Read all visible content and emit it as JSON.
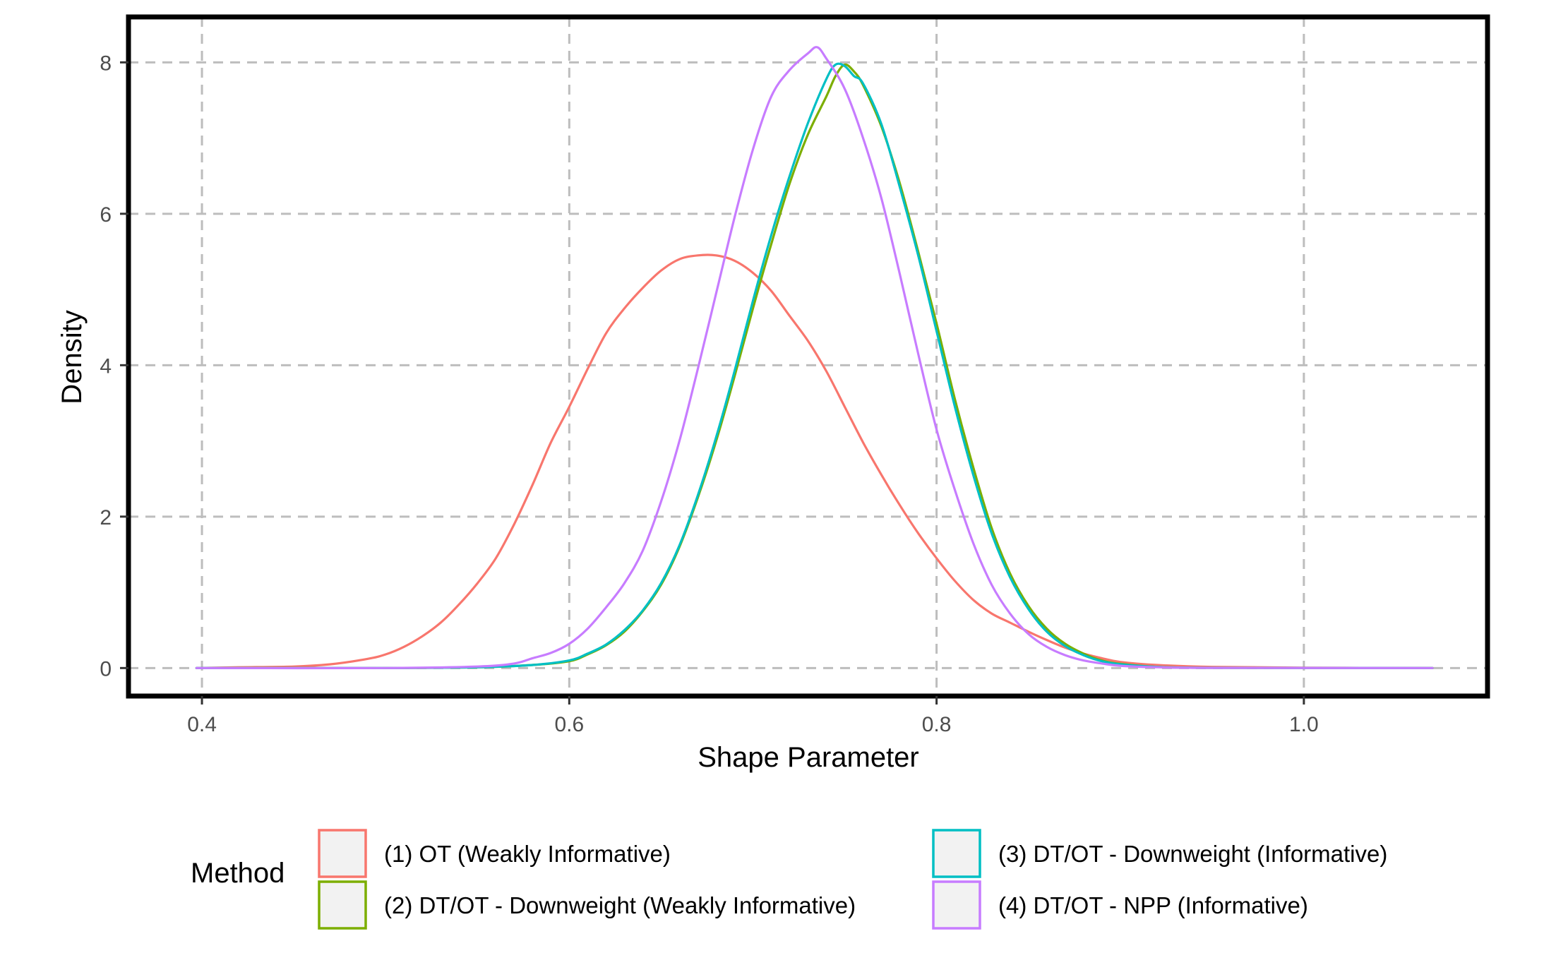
{
  "chart_data": {
    "type": "line",
    "title": "",
    "xlabel": "Shape Parameter",
    "ylabel": "Density",
    "xlim": [
      0.36,
      1.1
    ],
    "ylim": [
      -0.37,
      8.6
    ],
    "x_ticks": [
      0.4,
      0.6,
      0.8,
      1.0
    ],
    "x_tick_labels": [
      "0.4",
      "0.6",
      "0.8",
      "1.0"
    ],
    "y_ticks": [
      0,
      2,
      4,
      6,
      8
    ],
    "y_tick_labels": [
      "0",
      "2",
      "4",
      "6",
      "8"
    ],
    "grid": true,
    "legend": {
      "title": "Method",
      "position": "bottom"
    },
    "series": [
      {
        "name": "(1) OT (Weakly Informative)",
        "color": "#F8766D",
        "points": [
          [
            0.397,
            0
          ],
          [
            0.42,
            0.01
          ],
          [
            0.45,
            0.02
          ],
          [
            0.47,
            0.05
          ],
          [
            0.49,
            0.12
          ],
          [
            0.5,
            0.18
          ],
          [
            0.51,
            0.28
          ],
          [
            0.52,
            0.42
          ],
          [
            0.53,
            0.6
          ],
          [
            0.54,
            0.84
          ],
          [
            0.55,
            1.12
          ],
          [
            0.56,
            1.45
          ],
          [
            0.57,
            1.9
          ],
          [
            0.58,
            2.42
          ],
          [
            0.59,
            2.98
          ],
          [
            0.6,
            3.45
          ],
          [
            0.61,
            3.95
          ],
          [
            0.62,
            4.42
          ],
          [
            0.63,
            4.75
          ],
          [
            0.64,
            5.02
          ],
          [
            0.65,
            5.25
          ],
          [
            0.66,
            5.4
          ],
          [
            0.67,
            5.45
          ],
          [
            0.68,
            5.45
          ],
          [
            0.69,
            5.38
          ],
          [
            0.7,
            5.22
          ],
          [
            0.71,
            4.98
          ],
          [
            0.72,
            4.65
          ],
          [
            0.73,
            4.32
          ],
          [
            0.74,
            3.92
          ],
          [
            0.75,
            3.45
          ],
          [
            0.76,
            2.98
          ],
          [
            0.77,
            2.55
          ],
          [
            0.78,
            2.15
          ],
          [
            0.79,
            1.78
          ],
          [
            0.8,
            1.45
          ],
          [
            0.81,
            1.15
          ],
          [
            0.82,
            0.9
          ],
          [
            0.83,
            0.72
          ],
          [
            0.84,
            0.6
          ],
          [
            0.85,
            0.48
          ],
          [
            0.86,
            0.37
          ],
          [
            0.87,
            0.27
          ],
          [
            0.88,
            0.19
          ],
          [
            0.89,
            0.13
          ],
          [
            0.9,
            0.08
          ],
          [
            0.92,
            0.04
          ],
          [
            0.95,
            0.015
          ],
          [
            1.0,
            0.005
          ],
          [
            1.07,
            0
          ]
        ]
      },
      {
        "name": "(2) DT/OT - Downweight (Weakly Informative)",
        "color": "#7CAE00",
        "points": [
          [
            0.397,
            0
          ],
          [
            0.5,
            0
          ],
          [
            0.55,
            0.01
          ],
          [
            0.58,
            0.04
          ],
          [
            0.6,
            0.09
          ],
          [
            0.61,
            0.18
          ],
          [
            0.62,
            0.3
          ],
          [
            0.63,
            0.48
          ],
          [
            0.64,
            0.75
          ],
          [
            0.65,
            1.1
          ],
          [
            0.66,
            1.6
          ],
          [
            0.67,
            2.25
          ],
          [
            0.68,
            3.0
          ],
          [
            0.69,
            3.85
          ],
          [
            0.7,
            4.75
          ],
          [
            0.71,
            5.6
          ],
          [
            0.72,
            6.4
          ],
          [
            0.73,
            7.05
          ],
          [
            0.74,
            7.55
          ],
          [
            0.745,
            7.82
          ],
          [
            0.75,
            7.97
          ],
          [
            0.755,
            7.88
          ],
          [
            0.76,
            7.7
          ],
          [
            0.77,
            7.15
          ],
          [
            0.78,
            6.4
          ],
          [
            0.79,
            5.5
          ],
          [
            0.8,
            4.55
          ],
          [
            0.81,
            3.55
          ],
          [
            0.82,
            2.65
          ],
          [
            0.83,
            1.85
          ],
          [
            0.84,
            1.25
          ],
          [
            0.85,
            0.82
          ],
          [
            0.86,
            0.52
          ],
          [
            0.87,
            0.32
          ],
          [
            0.88,
            0.19
          ],
          [
            0.89,
            0.1
          ],
          [
            0.9,
            0.055
          ],
          [
            0.92,
            0.015
          ],
          [
            0.95,
            0.003
          ],
          [
            1.07,
            0
          ]
        ]
      },
      {
        "name": "(3) DT/OT - Downweight (Informative)",
        "color": "#00BFC4",
        "points": [
          [
            0.397,
            0
          ],
          [
            0.5,
            0
          ],
          [
            0.55,
            0.01
          ],
          [
            0.58,
            0.04
          ],
          [
            0.6,
            0.1
          ],
          [
            0.61,
            0.19
          ],
          [
            0.62,
            0.31
          ],
          [
            0.63,
            0.5
          ],
          [
            0.64,
            0.76
          ],
          [
            0.65,
            1.12
          ],
          [
            0.66,
            1.62
          ],
          [
            0.67,
            2.28
          ],
          [
            0.68,
            3.05
          ],
          [
            0.69,
            3.92
          ],
          [
            0.7,
            4.85
          ],
          [
            0.71,
            5.72
          ],
          [
            0.72,
            6.5
          ],
          [
            0.73,
            7.2
          ],
          [
            0.74,
            7.78
          ],
          [
            0.745,
            7.97
          ],
          [
            0.75,
            7.95
          ],
          [
            0.755,
            7.82
          ],
          [
            0.76,
            7.72
          ],
          [
            0.77,
            7.18
          ],
          [
            0.78,
            6.35
          ],
          [
            0.79,
            5.45
          ],
          [
            0.8,
            4.45
          ],
          [
            0.81,
            3.45
          ],
          [
            0.82,
            2.55
          ],
          [
            0.83,
            1.78
          ],
          [
            0.84,
            1.2
          ],
          [
            0.85,
            0.78
          ],
          [
            0.86,
            0.48
          ],
          [
            0.87,
            0.29
          ],
          [
            0.88,
            0.17
          ],
          [
            0.89,
            0.09
          ],
          [
            0.9,
            0.05
          ],
          [
            0.92,
            0.015
          ],
          [
            0.95,
            0.003
          ],
          [
            1.07,
            0
          ]
        ]
      },
      {
        "name": "(4) DT/OT - NPP (Informative)",
        "color": "#C77CFF",
        "points": [
          [
            0.397,
            0
          ],
          [
            0.5,
            0
          ],
          [
            0.55,
            0.02
          ],
          [
            0.57,
            0.06
          ],
          [
            0.58,
            0.13
          ],
          [
            0.59,
            0.2
          ],
          [
            0.6,
            0.32
          ],
          [
            0.61,
            0.52
          ],
          [
            0.62,
            0.8
          ],
          [
            0.63,
            1.12
          ],
          [
            0.64,
            1.55
          ],
          [
            0.65,
            2.2
          ],
          [
            0.66,
            3.0
          ],
          [
            0.67,
            3.95
          ],
          [
            0.68,
            4.95
          ],
          [
            0.69,
            5.95
          ],
          [
            0.7,
            6.85
          ],
          [
            0.71,
            7.55
          ],
          [
            0.72,
            7.9
          ],
          [
            0.73,
            8.12
          ],
          [
            0.735,
            8.2
          ],
          [
            0.74,
            8.05
          ],
          [
            0.75,
            7.65
          ],
          [
            0.76,
            7.0
          ],
          [
            0.77,
            6.2
          ],
          [
            0.78,
            5.2
          ],
          [
            0.79,
            4.15
          ],
          [
            0.8,
            3.15
          ],
          [
            0.81,
            2.35
          ],
          [
            0.82,
            1.65
          ],
          [
            0.83,
            1.1
          ],
          [
            0.84,
            0.72
          ],
          [
            0.85,
            0.45
          ],
          [
            0.86,
            0.28
          ],
          [
            0.87,
            0.17
          ],
          [
            0.88,
            0.1
          ],
          [
            0.89,
            0.06
          ],
          [
            0.9,
            0.03
          ],
          [
            0.92,
            0.01
          ],
          [
            0.95,
            0.002
          ],
          [
            1.07,
            0
          ]
        ]
      }
    ]
  }
}
